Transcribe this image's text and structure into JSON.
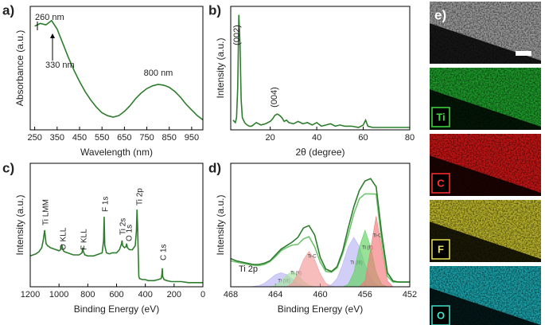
{
  "chart_data": [
    {
      "type": "line",
      "panel_label": "a)",
      "xlabel": "Wavelength (nm)",
      "ylabel": "Absorbance (a.u.)",
      "xlim": [
        230,
        1000
      ],
      "xticks": [
        250,
        350,
        450,
        550,
        650,
        750,
        850,
        950
      ],
      "ylim": [
        0.05,
        0.92
      ],
      "x": [
        250,
        275,
        300,
        325,
        350,
        375,
        400,
        425,
        450,
        475,
        500,
        525,
        550,
        575,
        600,
        625,
        650,
        675,
        700,
        725,
        750,
        775,
        800,
        825,
        850,
        875,
        900,
        925,
        950,
        975,
        1000
      ],
      "series": [
        {
          "color": "#2e7d2e",
          "values": [
            0.78,
            0.8,
            0.79,
            0.82,
            0.76,
            0.66,
            0.56,
            0.47,
            0.39,
            0.32,
            0.26,
            0.21,
            0.17,
            0.15,
            0.14,
            0.15,
            0.18,
            0.22,
            0.27,
            0.31,
            0.34,
            0.36,
            0.37,
            0.365,
            0.35,
            0.32,
            0.28,
            0.23,
            0.19,
            0.15,
            0.12
          ]
        }
      ],
      "annotations": [
        "260 nm",
        "330 nm",
        "800 nm"
      ]
    },
    {
      "type": "line",
      "panel_label": "b)",
      "xlabel": "2θ (degree)",
      "ylabel": "Intensity (a.u.)",
      "xlim": [
        3,
        80
      ],
      "xticks": [
        20,
        40,
        60,
        80
      ],
      "ylim": [
        0,
        1.02
      ],
      "x": [
        4,
        5,
        5.5,
        6,
        6.5,
        7,
        7.5,
        8,
        9,
        10,
        11,
        12,
        14,
        16,
        18,
        20,
        21,
        22,
        23,
        24,
        25,
        26,
        27,
        28,
        30,
        32,
        34,
        36,
        38,
        40,
        42,
        44,
        46,
        48,
        50,
        52,
        55,
        58,
        60,
        61,
        62,
        64,
        66,
        70,
        75,
        80
      ],
      "series": [
        {
          "color": "#2e7d2e",
          "values": [
            0.08,
            0.06,
            0.1,
            0.35,
            0.95,
            0.7,
            0.25,
            0.1,
            0.06,
            0.04,
            0.03,
            0.03,
            0.06,
            0.04,
            0.05,
            0.07,
            0.09,
            0.12,
            0.13,
            0.12,
            0.1,
            0.07,
            0.08,
            0.06,
            0.05,
            0.07,
            0.05,
            0.06,
            0.04,
            0.06,
            0.03,
            0.04,
            0.05,
            0.03,
            0.04,
            0.03,
            0.03,
            0.02,
            0.04,
            0.08,
            0.03,
            0.02,
            0.02,
            0.02,
            0.02,
            0.02
          ]
        }
      ],
      "annotations": [
        "(002)",
        "(004)"
      ]
    },
    {
      "type": "line",
      "panel_label": "c)",
      "xlabel": "Binding Energy (eV)",
      "ylabel": "Intensity (a.u.)",
      "xlim": [
        1200,
        0
      ],
      "xticks": [
        1200,
        1000,
        800,
        600,
        400,
        200,
        0
      ],
      "ylim": [
        0,
        1.2
      ],
      "x": [
        1200,
        1180,
        1160,
        1140,
        1120,
        1110,
        1100,
        1090,
        1080,
        1060,
        1040,
        1020,
        1000,
        990,
        980,
        970,
        960,
        940,
        920,
        900,
        880,
        860,
        840,
        835,
        830,
        820,
        800,
        780,
        760,
        740,
        720,
        700,
        690,
        686,
        682,
        670,
        650,
        630,
        600,
        580,
        565,
        562,
        558,
        545,
        535,
        530,
        525,
        510,
        490,
        470,
        462,
        458,
        454,
        450,
        445,
        440,
        420,
        400,
        380,
        360,
        340,
        310,
        290,
        285,
        282,
        279,
        270,
        250,
        220,
        200,
        150,
        100,
        50,
        0
      ],
      "series": [
        {
          "color": "#2e7d2e",
          "values": [
            0.3,
            0.31,
            0.32,
            0.34,
            0.38,
            0.45,
            0.55,
            0.42,
            0.4,
            0.38,
            0.37,
            0.36,
            0.35,
            0.36,
            0.4,
            0.35,
            0.34,
            0.33,
            0.32,
            0.31,
            0.31,
            0.31,
            0.33,
            0.38,
            0.34,
            0.31,
            0.3,
            0.3,
            0.3,
            0.31,
            0.32,
            0.33,
            0.45,
            0.68,
            0.4,
            0.33,
            0.32,
            0.33,
            0.33,
            0.36,
            0.42,
            0.45,
            0.4,
            0.38,
            0.39,
            0.42,
            0.38,
            0.36,
            0.36,
            0.4,
            0.55,
            0.75,
            0.6,
            0.38,
            0.1,
            0.08,
            0.07,
            0.07,
            0.06,
            0.06,
            0.06,
            0.07,
            0.08,
            0.12,
            0.18,
            0.1,
            0.07,
            0.06,
            0.05,
            0.05,
            0.05,
            0.04,
            0.04,
            0.04
          ]
        }
      ],
      "annotations": [
        "Ti LMM",
        "O KLL",
        "F KLL",
        "F 1s",
        "Ti 2s",
        "O 1s",
        "Ti 2p",
        "C 1s"
      ]
    },
    {
      "type": "line",
      "panel_label": "d)",
      "xlabel": "Binding Energy (eV)",
      "ylabel": "Intensity (a.u.)",
      "xlim": [
        468,
        452
      ],
      "xticks": [
        468,
        464,
        460,
        456,
        452
      ],
      "ylim": [
        0,
        1.05
      ],
      "x": [
        468,
        467.5,
        467,
        466.5,
        466,
        465.5,
        465,
        464.5,
        464,
        463.5,
        463,
        462.5,
        462,
        461.5,
        461,
        460.5,
        460,
        459.5,
        459,
        458.5,
        458,
        457.5,
        457,
        456.5,
        456,
        455.5,
        455,
        454.5,
        454,
        453.5,
        453,
        452.5,
        452
      ],
      "series": [
        {
          "name": "Ti (III)",
          "color": "#b9b6f2",
          "fill": true,
          "values": [
            0,
            0,
            0,
            0,
            0.003,
            0.01,
            0.03,
            0.065,
            0.103,
            0.12,
            0.103,
            0.065,
            0.03,
            0.01,
            0.003,
            0,
            0,
            0,
            0,
            0,
            0,
            0,
            0,
            0,
            0,
            0,
            0,
            0,
            0,
            0,
            0,
            0,
            0
          ]
        },
        {
          "name": "Ti (II)",
          "color": "#a6e3a0",
          "fill": true,
          "values": [
            0,
            0,
            0,
            0,
            0,
            0,
            0,
            0,
            0.013,
            0.047,
            0.1,
            0.13,
            0.1,
            0.047,
            0.013,
            0,
            0,
            0,
            0,
            0,
            0,
            0,
            0,
            0,
            0,
            0,
            0,
            0,
            0,
            0,
            0,
            0,
            0
          ]
        },
        {
          "name": "Ti-C",
          "color": "#f29a9a",
          "fill": true,
          "values": [
            0,
            0,
            0,
            0,
            0,
            0,
            0,
            0,
            0,
            0,
            0,
            0.03,
            0.11,
            0.23,
            0.3,
            0.23,
            0.11,
            0.03,
            0.005,
            0,
            0,
            0,
            0,
            0,
            0,
            0,
            0,
            0,
            0,
            0,
            0,
            0,
            0
          ]
        },
        {
          "name": "Ti (III)",
          "color": "#b9b6f2",
          "fill": true,
          "values": [
            0,
            0,
            0,
            0,
            0,
            0,
            0,
            0,
            0,
            0,
            0,
            0,
            0,
            0,
            0,
            0,
            0,
            0,
            0.018,
            0.07,
            0.19,
            0.34,
            0.42,
            0.34,
            0.19,
            0.07,
            0.018,
            0,
            0,
            0,
            0,
            0,
            0
          ]
        },
        {
          "name": "Ti (II)",
          "color": "#5fd35f",
          "fill": true,
          "values": [
            0,
            0,
            0,
            0,
            0,
            0,
            0,
            0,
            0,
            0,
            0,
            0,
            0,
            0,
            0,
            0,
            0,
            0,
            0,
            0,
            0,
            0.02,
            0.12,
            0.34,
            0.48,
            0.34,
            0.12,
            0.02,
            0,
            0,
            0,
            0,
            0
          ]
        },
        {
          "name": "Ti-C",
          "color": "#f27878",
          "fill": true,
          "values": [
            0,
            0,
            0,
            0,
            0,
            0,
            0,
            0,
            0,
            0,
            0,
            0,
            0,
            0,
            0,
            0,
            0,
            0,
            0,
            0,
            0,
            0,
            0,
            0,
            0.05,
            0.32,
            0.6,
            0.32,
            0.05,
            0,
            0,
            0,
            0
          ]
        },
        {
          "color": "#6fc46f",
          "values": [
            0.22,
            0.21,
            0.2,
            0.19,
            0.183,
            0.18,
            0.19,
            0.215,
            0.256,
            0.307,
            0.333,
            0.355,
            0.36,
            0.407,
            0.426,
            0.34,
            0.21,
            0.13,
            0.123,
            0.16,
            0.28,
            0.44,
            0.62,
            0.75,
            0.79,
            0.79,
            0.788,
            0.38,
            0.09,
            0.04,
            0.04,
            0.04,
            0.04
          ]
        },
        {
          "color": "#2e7d2e",
          "values": [
            0.24,
            0.22,
            0.21,
            0.2,
            0.19,
            0.19,
            0.2,
            0.22,
            0.27,
            0.32,
            0.35,
            0.38,
            0.42,
            0.5,
            0.52,
            0.44,
            0.25,
            0.15,
            0.13,
            0.17,
            0.3,
            0.5,
            0.68,
            0.82,
            0.9,
            0.92,
            0.85,
            0.45,
            0.12,
            0.05,
            0.04,
            0.04,
            0.04
          ]
        }
      ],
      "annotations": [
        "Ti 2p"
      ]
    }
  ],
  "maps": {
    "panel_label": "e)",
    "elements": [
      "Ti",
      "C",
      "F",
      "O"
    ]
  }
}
